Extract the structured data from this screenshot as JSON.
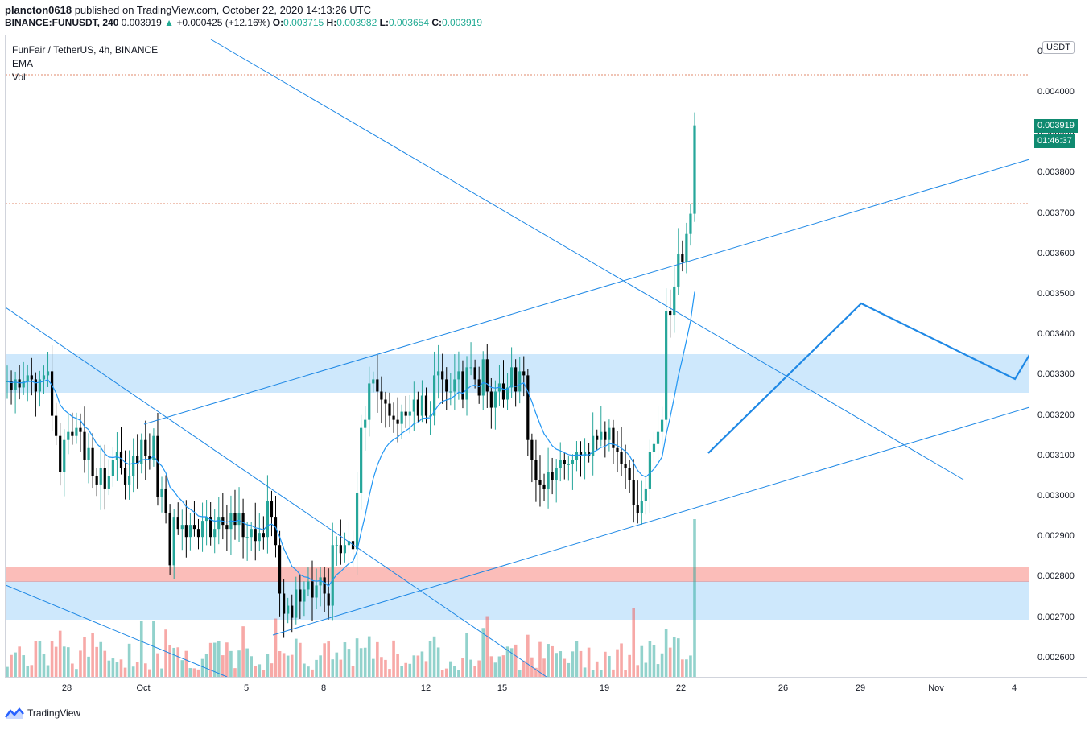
{
  "header": {
    "publisher_user": "plancton0618",
    "publisher_rest": " published on TradingView.com, October 22, 2020 14:13:26 UTC",
    "symbol": "BINANCE:FUNUSDT",
    "interval": "240",
    "last": "0.003919",
    "change": "+0.000425 (+12.16%)",
    "o_label": "O:",
    "o": "0.003715",
    "h_label": "H:",
    "h": "0.003982",
    "l_label": "L:",
    "l": "0.003654",
    "c_label": "C:",
    "c": "0.003919"
  },
  "legend": {
    "title": "FunFair / TetherUS, 4h, BINANCE",
    "ema": "EMA",
    "vol": "Vol"
  },
  "price_axis": {
    "unit": "USDT",
    "top_label": "0",
    "labels": [
      "0.004000",
      "0.003900",
      "0.003800",
      "0.003700",
      "0.003600",
      "0.003500",
      "0.003400",
      "0.003300",
      "0.003200",
      "0.003100",
      "0.003000",
      "0.002900",
      "0.002800",
      "0.002700",
      "0.002600"
    ],
    "last_price": "0.003919",
    "countdown": "01:46:37"
  },
  "time_axis": {
    "labels": [
      "28",
      "Oct",
      "5",
      "8",
      "12",
      "15",
      "19",
      "22",
      "26",
      "29",
      "Nov",
      "4"
    ]
  },
  "footer": {
    "brand": "TradingView"
  },
  "colors": {
    "up": "#26a69a",
    "down": "#000000",
    "ema": "#2196f3",
    "trend": "#1e88e5",
    "zone_blue": "rgba(33,150,243,0.22)",
    "zone_red": "rgba(244,67,54,0.35)",
    "last_price_tag": "#0f8a70"
  },
  "chart_data": {
    "type": "candlestick",
    "symbol": "FUNUSDT",
    "interval": "4h",
    "ylim": [
      0.00256,
      0.00444
    ],
    "x_ticks": [
      "28",
      "Oct",
      "5",
      "8",
      "12",
      "15",
      "19",
      "22",
      "26",
      "29",
      "Nov",
      "4"
    ],
    "closes": [
      0.003285,
      0.003265,
      0.00329,
      0.00327,
      0.003285,
      0.0033,
      0.00329,
      0.00326,
      0.00329,
      0.0033,
      0.00331,
      0.0032,
      0.00315,
      0.00306,
      0.00314,
      0.00316,
      0.00315,
      0.00317,
      0.00316,
      0.00309,
      0.00312,
      0.00305,
      0.00303,
      0.00307,
      0.00302,
      0.00305,
      0.00309,
      0.00311,
      0.00307,
      0.00303,
      0.00305,
      0.0031,
      0.00308,
      0.00314,
      0.0031,
      0.00309,
      0.00315,
      0.003,
      0.00302,
      0.00296,
      0.00283,
      0.00295,
      0.00292,
      0.00293,
      0.0029,
      0.00293,
      0.00292,
      0.0029,
      0.00294,
      0.00295,
      0.0029,
      0.00292,
      0.00295,
      0.00293,
      0.00292,
      0.00296,
      0.00293,
      0.00296,
      0.0029,
      0.0029,
      0.00292,
      0.00289,
      0.00291,
      0.0029,
      0.00299,
      0.00295,
      0.00288,
      0.00276,
      0.00271,
      0.00273,
      0.0027,
      0.00277,
      0.00274,
      0.00277,
      0.00279,
      0.00275,
      0.00278,
      0.0028,
      0.00276,
      0.00273,
      0.00288,
      0.00288,
      0.00286,
      0.00288,
      0.00289,
      0.00287,
      0.00301,
      0.00317,
      0.00319,
      0.00328,
      0.00329,
      0.00326,
      0.00324,
      0.00323,
      0.0032,
      0.00319,
      0.00318,
      0.00321,
      0.0032,
      0.00321,
      0.00324,
      0.0032,
      0.00325,
      0.0032,
      0.0032,
      0.0033,
      0.00331,
      0.00329,
      0.00326,
      0.00326,
      0.00329,
      0.00331,
      0.00324,
      0.00332,
      0.00332,
      0.00329,
      0.00325,
      0.00334,
      0.00326,
      0.00322,
      0.00326,
      0.00328,
      0.00324,
      0.00327,
      0.00332,
      0.00326,
      0.00331,
      0.0033,
      0.00314,
      0.00309,
      0.00304,
      0.00303,
      0.00302,
      0.00306,
      0.00304,
      0.00307,
      0.00309,
      0.00308,
      0.00308,
      0.00309,
      0.00311,
      0.0031,
      0.00311,
      0.0031,
      0.00315,
      0.00314,
      0.00316,
      0.00314,
      0.00317,
      0.00312,
      0.00311,
      0.00308,
      0.00307,
      0.00304,
      0.00298,
      0.00296,
      0.00299,
      0.00302,
      0.00311,
      0.00313,
      0.00316,
      0.00319,
      0.00346,
      0.00345,
      0.00352,
      0.0036,
      0.00358,
      0.00365,
      0.0037,
      0.003919
    ],
    "ema_end": 0.00333,
    "volume_spike_last": "max"
  }
}
